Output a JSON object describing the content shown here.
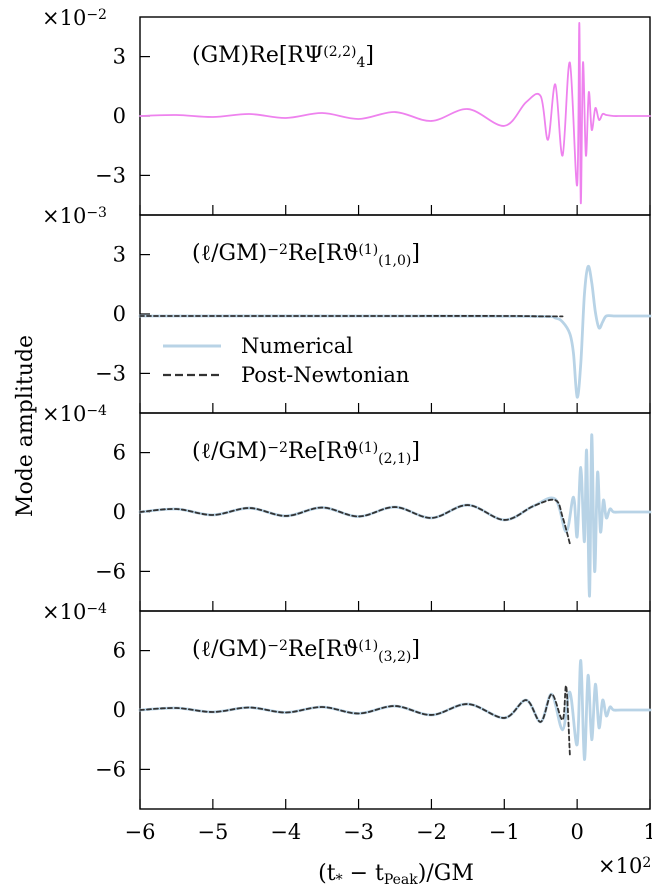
{
  "chart_data": {
    "type": "line",
    "ylabel": "Mode amplitude",
    "xlabel_prefix": "(t",
    "xlabel_sub1": "*",
    "xlabel_mid": " − t",
    "xlabel_sub2": "Peak",
    "xlabel_suffix": ")/GM",
    "x_multiplier_base": "×10",
    "x_multiplier_exp": "2",
    "xlim": [
      -6,
      1
    ],
    "xticks": [
      -6,
      -5,
      -4,
      -3,
      -2,
      -1,
      0,
      1
    ],
    "xtick_labels": [
      "−6",
      "−5",
      "−4",
      "−3",
      "−2",
      "−1",
      "0",
      "1"
    ],
    "colors": {
      "numerical": "#b8d3e6",
      "psi": "#ee82ee",
      "pn": "#333333"
    },
    "legend": {
      "placement": "center-left of panel 2",
      "entries": [
        {
          "label": "Numerical",
          "style": "solid"
        },
        {
          "label": "Post-Newtonian",
          "style": "dashed"
        }
      ]
    },
    "panels": [
      {
        "label_main": "(GM)Re[RΨ",
        "label_sub": "4",
        "label_sup": "(2,2)",
        "label_close": "]",
        "multiplier_base": "×10",
        "multiplier_exp": "−2",
        "ylim": [
          -5,
          5
        ],
        "yticks": [
          -3,
          0,
          3
        ],
        "ytick_labels": [
          "−3",
          "0",
          "3"
        ],
        "series": [
          {
            "color": "psi",
            "style": "solid",
            "x": [
              -6.0,
              -5.5,
              -5.0,
              -4.5,
              -4.0,
              -3.5,
              -3.0,
              -2.5,
              -2.0,
              -1.5,
              -1.0,
              -0.7,
              -0.5,
              -0.4,
              -0.3,
              -0.2,
              -0.1,
              0.0,
              0.03,
              0.05,
              0.08,
              0.12,
              0.16,
              0.2,
              0.25,
              0.3,
              0.35,
              0.4,
              0.5,
              0.6,
              0.7,
              0.8,
              1.0
            ],
            "y": [
              0.0,
              0.05,
              -0.05,
              0.1,
              -0.1,
              0.15,
              -0.15,
              0.2,
              -0.25,
              0.35,
              -0.5,
              0.7,
              1.0,
              -1.2,
              1.6,
              -2.0,
              2.7,
              -3.5,
              4.7,
              -4.4,
              2.7,
              -2.0,
              1.2,
              -0.7,
              0.4,
              -0.2,
              0.1,
              0.05,
              0.0,
              0.0,
              0.0,
              0.0,
              0.0
            ]
          }
        ]
      },
      {
        "label_main": "(ℓ/GM)",
        "label_power": "−2",
        "label_re": "Re[Rϑ",
        "label_sub": "(1,0)",
        "label_sup": "(1)",
        "label_close": "]",
        "multiplier_base": "×10",
        "multiplier_exp": "−3",
        "ylim": [
          -5,
          5
        ],
        "yticks": [
          -3,
          0,
          3
        ],
        "ytick_labels": [
          "−3",
          "0",
          "3"
        ],
        "series": [
          {
            "color": "numerical",
            "style": "solid",
            "x": [
              -6.0,
              -2.0,
              -0.5,
              -0.3,
              -0.2,
              -0.1,
              -0.05,
              0.0,
              0.05,
              0.1,
              0.15,
              0.2,
              0.25,
              0.3,
              0.35,
              0.4,
              0.5,
              0.6,
              0.8,
              1.0
            ],
            "y": [
              -0.1,
              -0.1,
              -0.12,
              -0.2,
              -0.4,
              -1.0,
              -2.0,
              -4.2,
              -2.5,
              1.0,
              2.4,
              1.6,
              0.1,
              -0.7,
              -0.4,
              -0.1,
              -0.1,
              -0.1,
              -0.1,
              -0.1
            ]
          },
          {
            "color": "pn",
            "style": "dashed",
            "x": [
              -6.0,
              -3.0,
              -1.0,
              -0.5,
              -0.3,
              -0.2
            ],
            "y": [
              -0.1,
              -0.1,
              -0.1,
              -0.12,
              -0.12,
              -0.12
            ]
          }
        ]
      },
      {
        "label_main": "(ℓ/GM)",
        "label_power": "−2",
        "label_re": "Re[Rϑ",
        "label_sub": "(2,1)",
        "label_sup": "(1)",
        "label_close": "]",
        "multiplier_base": "×10",
        "multiplier_exp": "−4",
        "ylim": [
          -10,
          10
        ],
        "yticks": [
          -6,
          0,
          6
        ],
        "ytick_labels": [
          "−6",
          "0",
          "6"
        ],
        "series": [
          {
            "color": "numerical",
            "style": "solid",
            "x": [
              -6.0,
              -5.5,
              -5.0,
              -4.5,
              -4.0,
              -3.5,
              -3.0,
              -2.5,
              -2.0,
              -1.5,
              -1.0,
              -0.6,
              -0.3,
              -0.15,
              -0.05,
              0.0,
              0.05,
              0.1,
              0.13,
              0.17,
              0.2,
              0.24,
              0.28,
              0.32,
              0.36,
              0.4,
              0.45,
              0.5,
              0.6,
              0.8,
              1.0
            ],
            "y": [
              0.0,
              0.3,
              -0.3,
              0.4,
              -0.4,
              0.45,
              -0.45,
              0.5,
              -0.6,
              0.7,
              -0.8,
              0.6,
              1.3,
              -2.0,
              1.5,
              -2.5,
              4.5,
              -3.0,
              6.2,
              -8.5,
              7.8,
              -6.0,
              4.0,
              -2.0,
              1.2,
              -0.6,
              0.3,
              0.0,
              0.0,
              0.0,
              0.0
            ]
          },
          {
            "color": "pn",
            "style": "dashed",
            "x": [
              -6.0,
              -5.5,
              -5.0,
              -4.5,
              -4.0,
              -3.5,
              -3.0,
              -2.5,
              -2.0,
              -1.5,
              -1.0,
              -0.6,
              -0.3,
              -0.2,
              -0.1
            ],
            "y": [
              0.0,
              0.3,
              -0.3,
              0.4,
              -0.4,
              0.45,
              -0.45,
              0.5,
              -0.6,
              0.7,
              -0.8,
              0.6,
              1.2,
              -0.5,
              -3.2
            ]
          }
        ]
      },
      {
        "label_main": "(ℓ/GM)",
        "label_power": "−2",
        "label_re": "Re[Rϑ",
        "label_sub": "(3,2)",
        "label_sup": "(1)",
        "label_close": "]",
        "multiplier_base": "×10",
        "multiplier_exp": "−4",
        "ylim": [
          -10,
          10
        ],
        "yticks": [
          -6,
          0,
          6
        ],
        "ytick_labels": [
          "−6",
          "0",
          "6"
        ],
        "series": [
          {
            "color": "numerical",
            "style": "solid",
            "x": [
              -6.0,
              -5.5,
              -5.0,
              -4.5,
              -4.0,
              -3.5,
              -3.0,
              -2.5,
              -2.0,
              -1.5,
              -1.0,
              -0.7,
              -0.5,
              -0.35,
              -0.2,
              -0.1,
              0.0,
              0.05,
              0.1,
              0.15,
              0.2,
              0.25,
              0.3,
              0.35,
              0.4,
              0.45,
              0.5,
              0.6,
              0.8,
              1.0
            ],
            "y": [
              0.0,
              0.2,
              -0.2,
              0.25,
              -0.25,
              0.3,
              -0.35,
              0.4,
              -0.5,
              0.6,
              -0.8,
              1.0,
              -1.2,
              1.6,
              -2.0,
              1.8,
              -3.5,
              5.0,
              -5.0,
              3.5,
              -3.0,
              2.6,
              -1.8,
              1.0,
              -0.6,
              0.3,
              0.0,
              0.0,
              0.0,
              0.0
            ]
          },
          {
            "color": "pn",
            "style": "dashed",
            "x": [
              -6.0,
              -5.5,
              -5.0,
              -4.5,
              -4.0,
              -3.5,
              -3.0,
              -2.5,
              -2.0,
              -1.5,
              -1.0,
              -0.7,
              -0.5,
              -0.35,
              -0.2,
              -0.15,
              -0.1
            ],
            "y": [
              0.0,
              0.2,
              -0.2,
              0.25,
              -0.25,
              0.3,
              -0.35,
              0.4,
              -0.5,
              0.6,
              -0.8,
              1.0,
              -1.2,
              1.6,
              -1.0,
              2.4,
              -4.5
            ]
          }
        ]
      }
    ]
  }
}
